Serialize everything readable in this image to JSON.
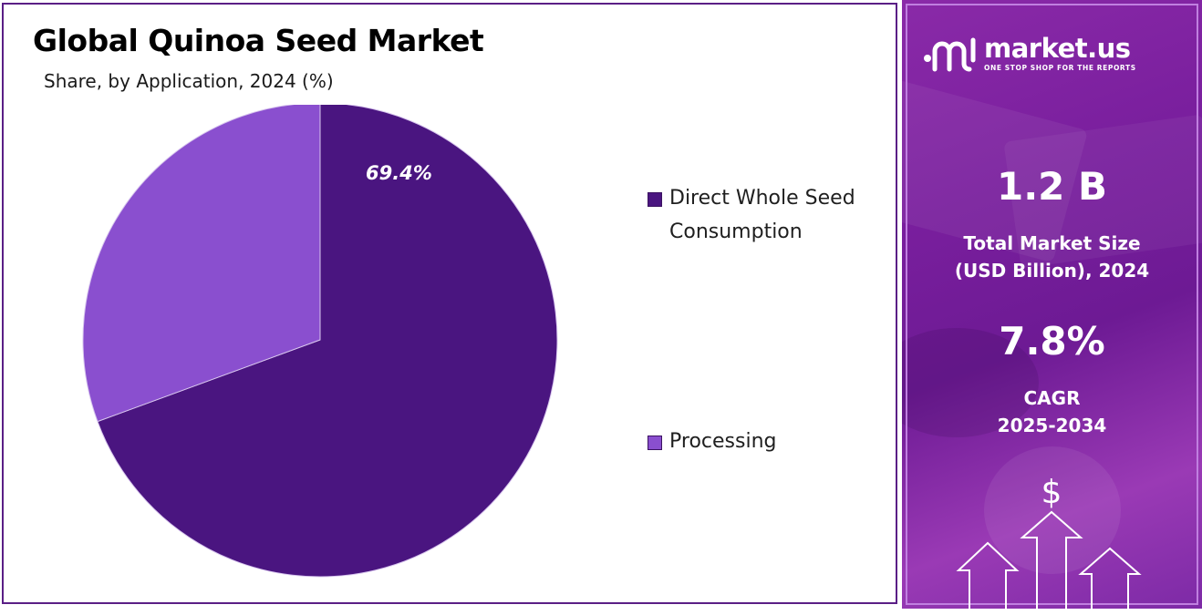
{
  "title": "Global Quinoa Seed Market",
  "subtitle": "Share, by Application, 2024 (%)",
  "chart_data": {
    "type": "pie",
    "title": "Global Quinoa Seed Market",
    "subtitle": "Share, by Application, 2024 (%)",
    "categories": [
      "Direct Whole Seed Consumption",
      "Processing"
    ],
    "values": [
      69.4,
      30.6
    ],
    "colors": [
      "#4a1580",
      "#8a4fcf"
    ],
    "data_labels": [
      "69.4%",
      ""
    ],
    "legend_position": "right"
  },
  "legend": {
    "items": [
      {
        "label_line1": "Direct Whole Seed",
        "label_line2": "Consumption",
        "color": "#4a1580"
      },
      {
        "label_line1": "Processing",
        "label_line2": "",
        "color": "#8a4fcf"
      }
    ]
  },
  "brand": {
    "name": "market.us",
    "tagline": "ONE STOP SHOP FOR THE REPORTS",
    "logo_icon": "market-us-logo-icon"
  },
  "stats": {
    "market_size": {
      "value": "1.2 B",
      "label_line1": "Total Market Size",
      "label_line2": "(USD Billion), 2024"
    },
    "cagr": {
      "value": "7.8%",
      "label_line1": "CAGR",
      "label_line2": "2025-2034"
    }
  },
  "decor": {
    "icons": [
      "dollar-icon",
      "up-arrow-icon"
    ]
  },
  "colors": {
    "panel_border": "#5a1f86",
    "sidebar_purple": "#7a1f9e"
  }
}
